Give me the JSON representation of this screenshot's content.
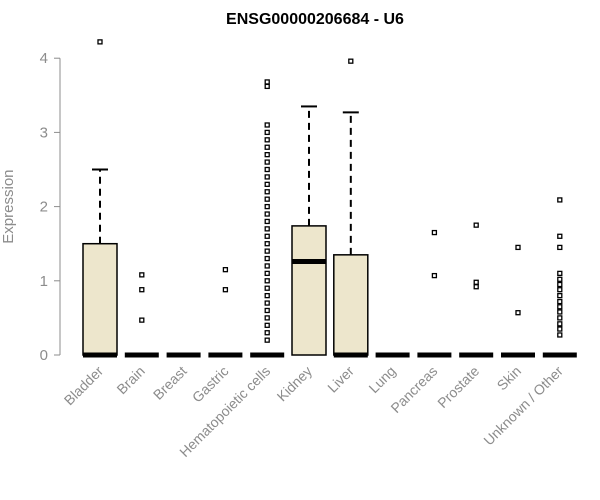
{
  "chart_data": {
    "type": "boxplot",
    "title": "ENSG00000206684 - U6",
    "xlabel": "",
    "ylabel": "Expression",
    "ylim": [
      0,
      4.3
    ],
    "yticks": [
      "0",
      "1",
      "2",
      "3",
      "4"
    ],
    "box_fill": "#ede6cc",
    "categories": [
      "Bladder",
      "Brain",
      "Breast",
      "Gastric",
      "Hematopoietic cells",
      "Kidney",
      "Liver",
      "Lung",
      "Pancreas",
      "Prostate",
      "Skin",
      "Unknown / Other"
    ],
    "boxes": [
      {
        "q1": 0,
        "median": 0,
        "q3": 1.5,
        "whisker_low": 0,
        "whisker_high": 2.5,
        "outliers": [
          4.22
        ]
      },
      {
        "q1": 0,
        "median": 0,
        "q3": 0,
        "whisker_low": 0,
        "whisker_high": 0,
        "outliers": [
          0.47,
          0.88,
          1.08
        ]
      },
      {
        "q1": 0,
        "median": 0,
        "q3": 0,
        "whisker_low": 0,
        "whisker_high": 0,
        "outliers": []
      },
      {
        "q1": 0,
        "median": 0,
        "q3": 0,
        "whisker_low": 0,
        "whisker_high": 0,
        "outliers": [
          0.88,
          1.15
        ]
      },
      {
        "q1": 0,
        "median": 0,
        "q3": 0,
        "whisker_low": 0,
        "whisker_high": 0,
        "outliers": [
          0.2,
          0.3,
          0.4,
          0.5,
          0.6,
          0.7,
          0.8,
          0.9,
          1.0,
          1.1,
          1.2,
          1.3,
          1.4,
          1.5,
          1.6,
          1.7,
          1.8,
          1.9,
          2.0,
          2.1,
          2.2,
          2.3,
          2.4,
          2.5,
          2.6,
          2.7,
          2.8,
          2.9,
          3.0,
          3.1,
          3.62,
          3.68
        ]
      },
      {
        "q1": 0,
        "median": 1.26,
        "q3": 1.74,
        "whisker_low": 0,
        "whisker_high": 3.35,
        "outliers": []
      },
      {
        "q1": 0,
        "median": 0,
        "q3": 1.35,
        "whisker_low": 0,
        "whisker_high": 3.27,
        "outliers": [
          3.96
        ]
      },
      {
        "q1": 0,
        "median": 0,
        "q3": 0,
        "whisker_low": 0,
        "whisker_high": 0,
        "outliers": []
      },
      {
        "q1": 0,
        "median": 0,
        "q3": 0,
        "whisker_low": 0,
        "whisker_high": 0,
        "outliers": [
          1.07,
          1.65
        ]
      },
      {
        "q1": 0,
        "median": 0,
        "q3": 0,
        "whisker_low": 0,
        "whisker_high": 0,
        "outliers": [
          0.92,
          0.98,
          1.75
        ]
      },
      {
        "q1": 0,
        "median": 0,
        "q3": 0,
        "whisker_low": 0,
        "whisker_high": 0,
        "outliers": [
          0.57,
          1.45
        ]
      },
      {
        "q1": 0,
        "median": 0,
        "q3": 0,
        "whisker_low": 0,
        "whisker_high": 0,
        "outliers": [
          0.27,
          0.35,
          0.42,
          0.5,
          0.58,
          0.65,
          0.72,
          0.8,
          0.88,
          0.95,
          1.02,
          1.1,
          1.45,
          1.6,
          2.09
        ]
      }
    ]
  }
}
